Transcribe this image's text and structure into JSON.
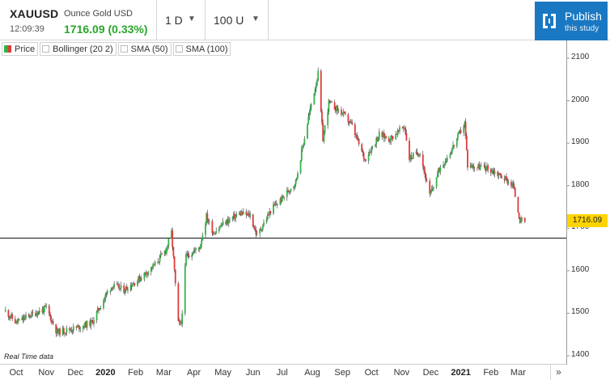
{
  "header": {
    "symbol": "XAUUSD",
    "time": "12:09:39",
    "instrument_name": "Ounce Gold USD",
    "price_change": "1716.09 (0.33%)",
    "interval": "1 D",
    "units": "100 U",
    "publish_label": "Publish",
    "publish_sub": "this study",
    "accent": "#1a78c2",
    "up_color": "#36b34a",
    "down_color": "#e03a3a"
  },
  "legend": {
    "items": [
      "Price",
      "Bollinger (20 2)",
      "SMA (50)",
      "SMA (100)"
    ]
  },
  "footer": {
    "note": "Real Time data",
    "current_price_tag": "1716.09",
    "scroll_right": "»"
  },
  "chart_data": {
    "type": "candlestick",
    "y_axis_side": "right",
    "ylim": [
      1400,
      2100
    ],
    "yticks": [
      "2100",
      "2000",
      "1900",
      "1800",
      "1700",
      "1600",
      "1500",
      "1400"
    ],
    "x_tick_labels": [
      "Oct",
      "Nov",
      "Dec",
      "2020",
      "Feb",
      "Mar",
      "Apr",
      "May",
      "Jun",
      "Jul",
      "Aug",
      "Sep",
      "Oct",
      "Nov",
      "Dec",
      "2021",
      "Feb",
      "Mar"
    ],
    "x_tick_dates": [
      "2019-10-01",
      "2019-11-01",
      "2019-12-01",
      "2020-01-01",
      "2020-02-01",
      "2020-03-01",
      "2020-04-01",
      "2020-05-01",
      "2020-06-01",
      "2020-07-01",
      "2020-08-01",
      "2020-09-01",
      "2020-10-01",
      "2020-11-01",
      "2020-12-01",
      "2021-01-01",
      "2021-02-01",
      "2021-03-01"
    ],
    "horizontal_line": 1677,
    "last_price": 1716.09,
    "anchors": [
      [
        "2019-09-20",
        1505
      ],
      [
        "2019-10-01",
        1478
      ],
      [
        "2019-10-15",
        1495
      ],
      [
        "2019-11-01",
        1512
      ],
      [
        "2019-11-12",
        1455
      ],
      [
        "2019-12-01",
        1465
      ],
      [
        "2019-12-18",
        1478
      ],
      [
        "2020-01-03",
        1550
      ],
      [
        "2020-01-08",
        1565
      ],
      [
        "2020-01-20",
        1555
      ],
      [
        "2020-02-03",
        1578
      ],
      [
        "2020-02-20",
        1612
      ],
      [
        "2020-03-03",
        1648
      ],
      [
        "2020-03-09",
        1690
      ],
      [
        "2020-03-16",
        1475
      ],
      [
        "2020-03-19",
        1475
      ],
      [
        "2020-03-24",
        1635
      ],
      [
        "2020-04-07",
        1655
      ],
      [
        "2020-04-14",
        1728
      ],
      [
        "2020-04-21",
        1690
      ],
      [
        "2020-05-01",
        1710
      ],
      [
        "2020-05-18",
        1735
      ],
      [
        "2020-05-29",
        1730
      ],
      [
        "2020-06-05",
        1682
      ],
      [
        "2020-06-20",
        1745
      ],
      [
        "2020-07-01",
        1770
      ],
      [
        "2020-07-15",
        1810
      ],
      [
        "2020-07-28",
        1960
      ],
      [
        "2020-08-07",
        2063
      ],
      [
        "2020-08-12",
        1910
      ],
      [
        "2020-08-18",
        1995
      ],
      [
        "2020-09-01",
        1970
      ],
      [
        "2020-09-10",
        1945
      ],
      [
        "2020-09-24",
        1862
      ],
      [
        "2020-10-09",
        1920
      ],
      [
        "2020-10-20",
        1910
      ],
      [
        "2020-11-04",
        1940
      ],
      [
        "2020-11-09",
        1865
      ],
      [
        "2020-11-20",
        1880
      ],
      [
        "2020-11-30",
        1775
      ],
      [
        "2020-12-10",
        1840
      ],
      [
        "2020-12-21",
        1878
      ],
      [
        "2021-01-05",
        1948
      ],
      [
        "2021-01-08",
        1848
      ],
      [
        "2021-01-27",
        1842
      ],
      [
        "2021-02-03",
        1835
      ],
      [
        "2021-02-15",
        1818
      ],
      [
        "2021-02-24",
        1800
      ],
      [
        "2021-03-03",
        1718
      ],
      [
        "2021-03-08",
        1716
      ]
    ]
  }
}
